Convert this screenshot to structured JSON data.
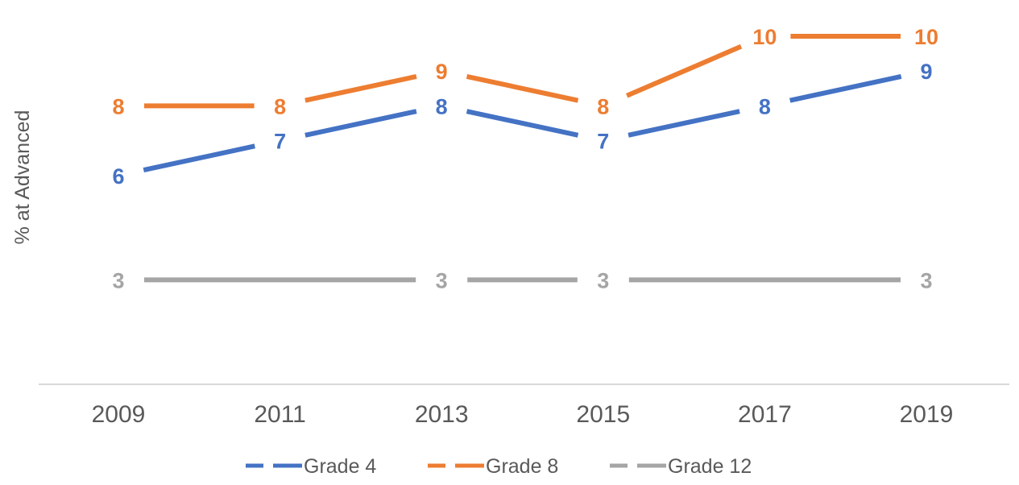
{
  "chart_data": {
    "type": "line",
    "title": "",
    "xlabel": "",
    "ylabel": "% at Advanced",
    "categories": [
      "2009",
      "2011",
      "2013",
      "2015",
      "2017",
      "2019"
    ],
    "ylim": [
      0,
      11
    ],
    "grid": false,
    "legend_position": "bottom",
    "series": [
      {
        "name": "Grade 4",
        "color": "#4472C4",
        "values": [
          6,
          7,
          8,
          7,
          8,
          9
        ],
        "labels": [
          "6",
          "7",
          "8",
          "7",
          "8",
          "9"
        ]
      },
      {
        "name": "Grade 8",
        "color": "#ED7D31",
        "values": [
          8,
          8,
          9,
          8,
          10,
          10
        ],
        "labels": [
          "8",
          "8",
          "9",
          "8",
          "10",
          "10"
        ]
      },
      {
        "name": "Grade 12",
        "color": "#A5A5A5",
        "values": [
          3,
          null,
          3,
          3,
          null,
          3
        ],
        "labels": [
          "3",
          "",
          "3",
          "3",
          "",
          "3"
        ]
      }
    ]
  }
}
